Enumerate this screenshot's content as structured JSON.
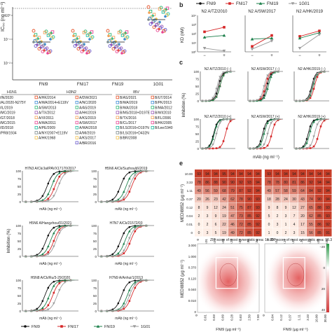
{
  "colors": {
    "FNI9": "#111111",
    "FNI17": "#d62728",
    "FNI19": "#1b7f4a",
    "1G01": "#9a9a9a",
    "heat_high": "#c4321c",
    "heat_low": "#fff2ea",
    "zip_pos": "#d23a3a",
    "zip_neg": "#2e9a4a"
  },
  "panel_labels": {
    "b": "b",
    "c": "c",
    "e": "e"
  },
  "legend": {
    "FNI9": "FNI9",
    "FNI17": "FNI17",
    "FNI19": "FNI19",
    "1G01": "1G01"
  },
  "panel_a": {
    "ylabel": "IC₅₀ (ng ml⁻¹)",
    "groups": [
      "FNI9",
      "FNI17",
      "FNI19",
      "1G01"
    ],
    "subtype_headers": [
      "H1N1",
      "H3N2",
      "IBV"
    ],
    "h1n1_strains": [
      "/IN/2020",
      "/AL/2020-N275Y",
      "/IL/2019",
      "/MC/2019",
      "/GT/2018",
      "/MC/2015",
      "/ID/2018",
      "/PR8/1934"
    ],
    "h3n2_col1": [
      "A/HK/2014",
      "A/WA/2014+E119V",
      "A/SW/2013",
      "A/TX/2012",
      "A/VI/2011",
      "A/WA/2011",
      "A/PE/2009",
      "A/NY/2007+E119V",
      "A/HK/1968"
    ],
    "h3n2_col2": [
      "A/DW/2021",
      "A/NC/2020",
      "A/AS/2019",
      "A/HK/2019",
      "A/KS/2019",
      "A/SW/2017",
      "A/WA/2018",
      "A/MI/2019",
      "A/KS/2017",
      "A/BR/2016"
    ],
    "ibv_col1": [
      "B/AS/2021",
      "B/WA/2019",
      "B/WA/2018",
      "B/MS/2018+D197E",
      "B/TX/2016",
      "B/CL/2017",
      "B/LS/2016+D197N",
      "B/LS/2016+D432N",
      "B/BR/2008"
    ],
    "ibv_col2": [
      "B/UT/2014",
      "B/PK/2013",
      "B/MA/2012",
      "B/WI/2010",
      "B/FL/2006",
      "B/HK/2005",
      "B/Lee/1940"
    ]
  },
  "panel_b": {
    "ylabel": "KD (nM)",
    "subplots": [
      {
        "title": "N2 A/TZ/2010",
        "ticks": [
          "−",
          "+"
        ],
        "y_ticks": [
          "10⁰",
          "10¹",
          "10²",
          "10³",
          "10⁴"
        ]
      },
      {
        "title": "N2 A/SW/2017",
        "ticks": [
          "−",
          "+"
        ]
      },
      {
        "title": "N2 A/HK/2019",
        "ticks": [
          "−",
          "+"
        ]
      }
    ],
    "lines": {
      "FNI17": [
        [
          2.2,
          2.7
        ],
        [
          0.6,
          1.8
        ],
        [
          1.7,
          2.3
        ]
      ],
      "FNI19": [
        [
          1.6,
          1.8
        ],
        [
          1.4,
          1.5
        ],
        [
          1.5,
          2.1
        ]
      ],
      "1G01": [
        [
          0.4,
          0.1
        ],
        [
          0.3,
          1.2
        ],
        [
          0.4,
          1.9
        ]
      ]
    }
  },
  "panel_c": {
    "ylabel": "Inhibition (%)",
    "xlabel": "mAb (ng ml⁻¹)",
    "y_ticks": [
      "0",
      "25",
      "50",
      "75",
      "100"
    ],
    "x_ticks": [
      "10⁻¹",
      "10⁰",
      "10¹",
      "10²",
      "10³",
      "10⁴"
    ],
    "subplots": [
      {
        "title": "N2 A/TZ/2010 (−)",
        "ec50": {
          "FNI9": 1.6,
          "FNI17": 1.8,
          "FNI19": 1.8,
          "1G01": 1.4
        }
      },
      {
        "title": "N2 A/SW/2017 (−)",
        "ec50": {
          "FNI9": 1.7,
          "FNI17": 1.5,
          "FNI19": 1.9,
          "1G01": 1.3
        }
      },
      {
        "title": "N2 A/HK/2019 (−)",
        "ec50": {
          "FNI9": 1.5,
          "FNI17": 1.9,
          "FNI19": 1.7,
          "1G01": 1.6
        }
      },
      {
        "title": "N2 A/TZ/2010 (+)",
        "ec50": {
          "FNI9": 0.9,
          "FNI17": 2.6,
          "FNI19": 1.0,
          "1G01": 1.3
        }
      },
      {
        "title": "N2 A/SW/2017 (+)",
        "ec50": {
          "FNI9": 1.1,
          "FNI17": 2.4,
          "FNI19": 1.3,
          "1G01": 1.8
        }
      },
      {
        "title": "N2 A/HK/2019 (+)",
        "ec50": {
          "FNI9": 1.0,
          "FNI17": 2.5,
          "FNI19": 1.2,
          "1G01": 1.9
        }
      }
    ]
  },
  "panel_d": {
    "ylabel": "Inhibition (%)",
    "xlabel": "mAb (ng ml⁻¹)",
    "y_ticks": [
      "0",
      "25",
      "50",
      "75",
      "100"
    ],
    "x_ticks": [
      "10⁻¹",
      "10⁰",
      "10¹",
      "10²",
      "10³",
      "10⁴"
    ],
    "subplots": [
      {
        "title": "H7N3 A/Ck/Jal/PAVX17170/2017",
        "ec50": {
          "FNI9": 1.2,
          "FNI17": 1.9,
          "FNI19": 1.6,
          "1G01": 2.2
        }
      },
      {
        "title": "H5N6 A/Ck/Suzhou/j6/2019",
        "ec50": {
          "FNI9": 1.0,
          "FNI17": 2.0,
          "FNI19": 1.5,
          "1G01": 1.8
        }
      },
      {
        "title": "H5N6 A/Hangzhou/01/2021",
        "ec50": {
          "FNI9": 1.1,
          "FNI17": 1.8,
          "FNI19": 1.5,
          "1G01": 2.0
        }
      },
      {
        "title": "H7N7 A/Ck/21572/03",
        "ec50": {
          "FNI9": 1.0,
          "FNI17": 1.9,
          "FNI19": 1.4,
          "1G01": 1.7
        }
      },
      {
        "title": "H5N8 A/Ck/Ru/3-29/2020",
        "ec50": {
          "FNI9": 1.0,
          "FNI17": 1.7,
          "FNI19": 1.4,
          "1G01": 2.1
        }
      },
      {
        "title": "H7N9 A/Anhui/1/2013",
        "ec50": {
          "FNI9": 1.1,
          "FNI17": 2.0,
          "FNI19": 1.6,
          "1G01": 1.8
        }
      }
    ]
  },
  "panel_e": {
    "ylabel": "MEDI8852 (μg ml⁻¹)",
    "xlabel": "FNI9 (μg ml⁻¹)",
    "y_ticks": [
      "10.00",
      "3.33",
      "1.11",
      "0.37",
      "0.12",
      "0.04",
      "0.01",
      "0"
    ],
    "x_ticks_left": [
      "0",
      "0.01",
      "0.03",
      "0.09",
      "0.28",
      "0.83",
      "2.50",
      "7.50"
    ],
    "x_ticks_right": [
      "0",
      "0.04",
      "0.12",
      "0.37",
      "1.11",
      "3.33",
      "10.00",
      "30.00"
    ],
    "heatmap_left": [
      [
        93,
        94,
        94,
        95,
        94,
        94,
        94,
        94
      ],
      [
        78,
        86,
        88,
        90,
        90,
        92,
        93,
        94
      ],
      [
        49,
        56,
        59,
        68,
        79,
        87,
        92,
        94
      ],
      [
        20,
        26,
        23,
        42,
        62,
        78,
        90,
        93
      ],
      [
        8,
        9,
        12,
        24,
        51,
        75,
        87,
        93
      ],
      [
        2,
        3,
        9,
        19,
        47,
        73,
        85,
        92
      ],
      [
        0,
        2,
        6,
        22,
        46,
        72,
        85,
        92
      ],
      [
        0,
        3,
        5,
        19,
        49,
        72,
        85,
        92
      ]
    ],
    "heatmap_right": [
      [
        93,
        94,
        94,
        94,
        94,
        94,
        94,
        94
      ],
      [
        78,
        78,
        80,
        81,
        86,
        92,
        94,
        94
      ],
      [
        49,
        57,
        58,
        59,
        64,
        84,
        92,
        94
      ],
      [
        18,
        28,
        24,
        30,
        43,
        74,
        90,
        94
      ],
      [
        9,
        8,
        9,
        12,
        27,
        65,
        88,
        93
      ],
      [
        5,
        2,
        3,
        7,
        20,
        62,
        85,
        93
      ],
      [
        0,
        3,
        1,
        4,
        17,
        55,
        86,
        92
      ],
      [
        1,
        0,
        2,
        3,
        15,
        56,
        85,
        91
      ]
    ],
    "zip_left_title": "ZIP score of most synergistic area: 16.89",
    "zip_right_title": "ZIP score of most synergistic area: 18.36",
    "zip_y_ticks": [
      "3.000",
      "1.000",
      "0.370",
      "0.120",
      "0.040",
      "0.010",
      "0"
    ],
    "zip_scale_ticks": [
      "−20",
      "0",
      "20",
      "40"
    ]
  }
}
